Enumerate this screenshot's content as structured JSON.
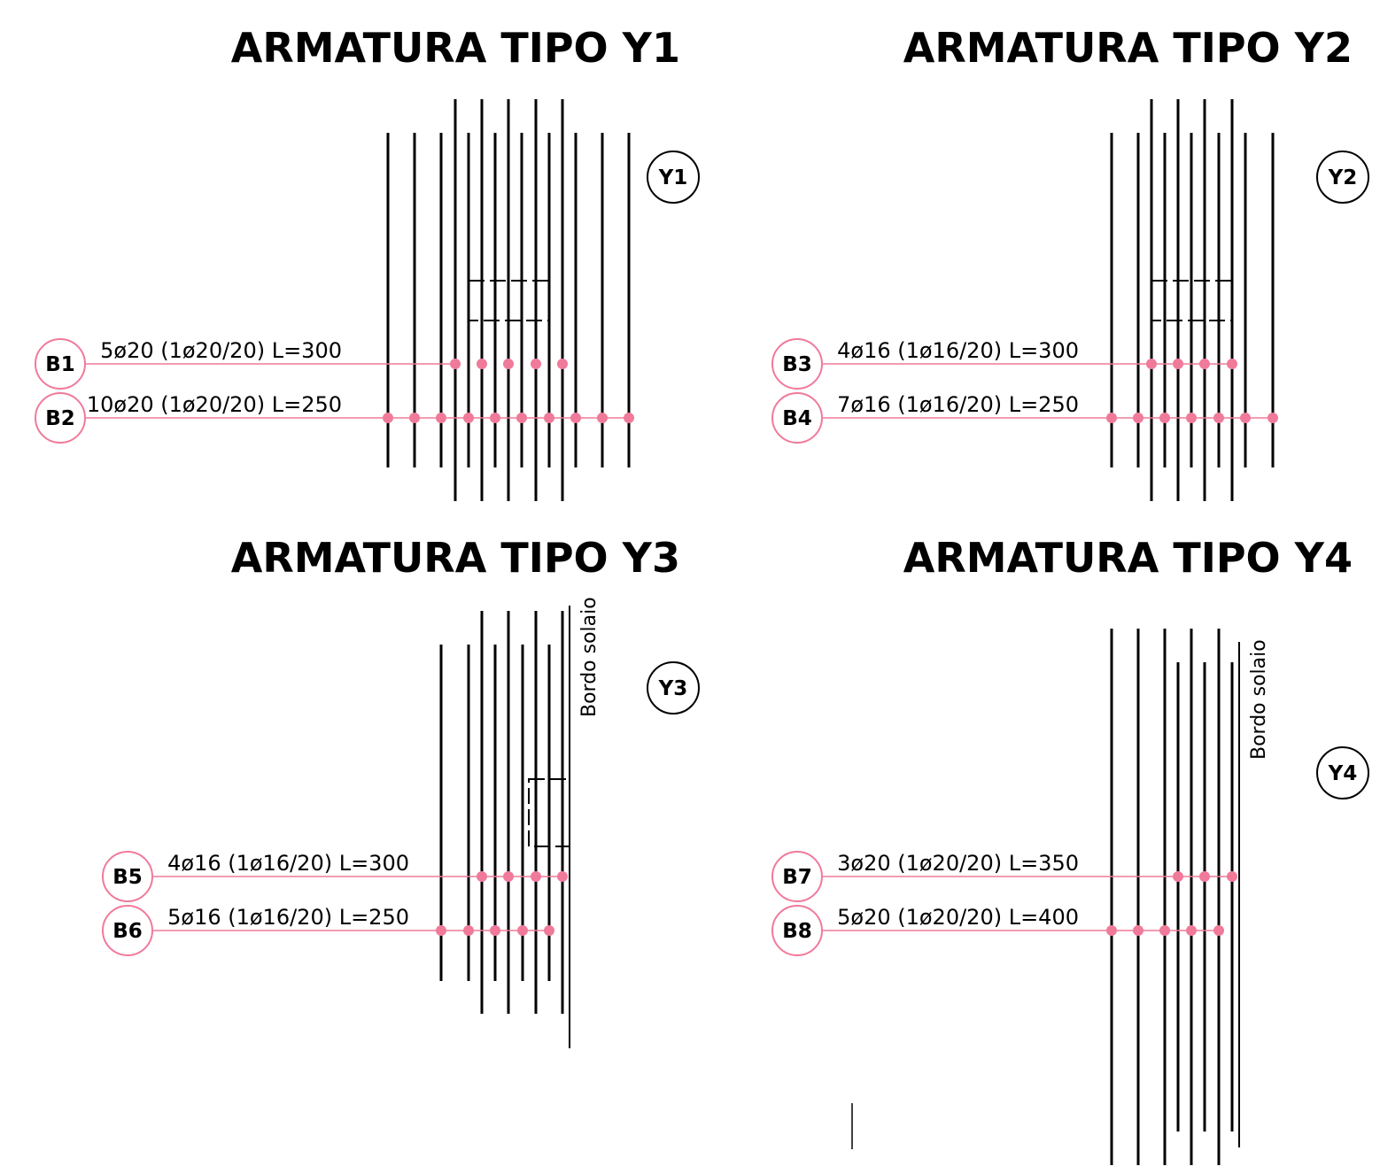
{
  "colors": {
    "ink": "#000000",
    "rebar_highlight": "#f07a9a",
    "background": "#ffffff"
  },
  "panels": [
    {
      "title": "ARMATURA TIPO Y1",
      "id_label": "Y1",
      "edge_label": "",
      "rows": [
        {
          "tag": "B1",
          "label": "5ø20 (1ø20/20) L=300",
          "bar_count": 5
        },
        {
          "tag": "B2",
          "label": "10ø20 (1ø20/20) L=250",
          "bar_count": 10
        }
      ]
    },
    {
      "title": "ARMATURA TIPO Y2",
      "id_label": "Y2",
      "edge_label": "",
      "rows": [
        {
          "tag": "B3",
          "label": "4ø16 (1ø16/20) L=300",
          "bar_count": 4
        },
        {
          "tag": "B4",
          "label": "7ø16 (1ø16/20) L=250",
          "bar_count": 7
        }
      ]
    },
    {
      "title": "ARMATURA TIPO Y3",
      "id_label": "Y3",
      "edge_label": "Bordo solaio",
      "rows": [
        {
          "tag": "B5",
          "label": "4ø16 (1ø16/20) L=300",
          "bar_count": 4
        },
        {
          "tag": "B6",
          "label": "5ø16 (1ø16/20) L=250",
          "bar_count": 5
        }
      ]
    },
    {
      "title": "ARMATURA TIPO Y4",
      "id_label": "Y4",
      "edge_label": "Bordo solaio",
      "rows": [
        {
          "tag": "B7",
          "label": "3ø20 (1ø20/20) L=350",
          "bar_count": 3
        },
        {
          "tag": "B8",
          "label": "5ø20 (1ø20/20) L=400",
          "bar_count": 5
        }
      ]
    }
  ]
}
